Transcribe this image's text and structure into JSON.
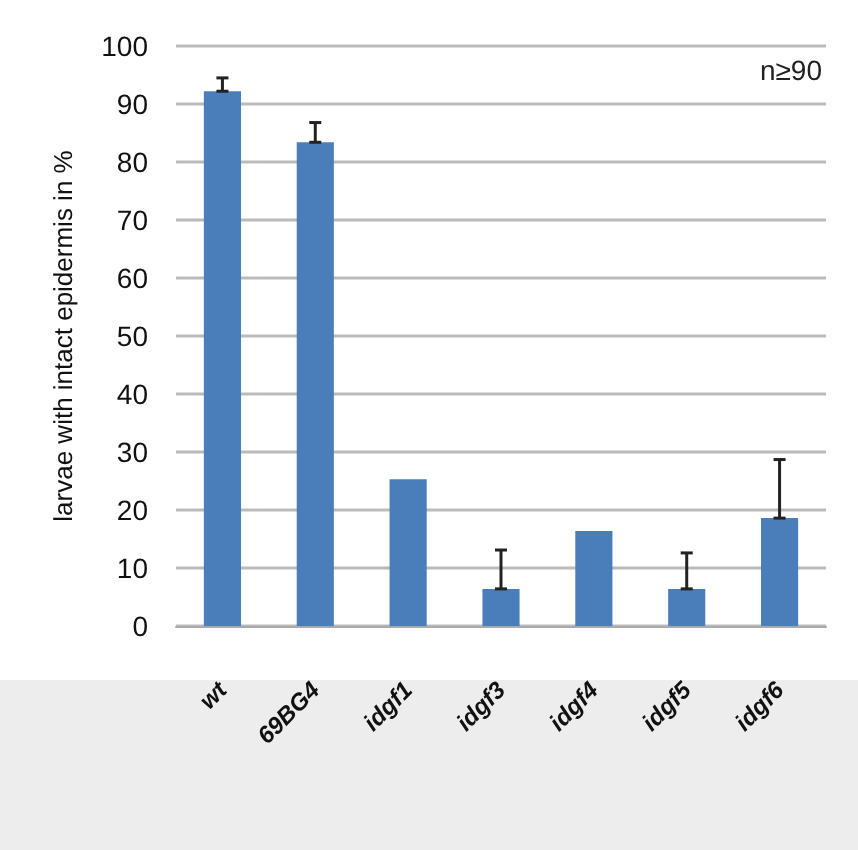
{
  "chart_data": {
    "type": "bar",
    "ylabel": "larvae with intact epidermis in %",
    "categories": [
      "wt",
      "69BG4",
      "idgf1",
      "idgf3",
      "idgf4",
      "idgf5",
      "idgf6"
    ],
    "values": [
      92.2,
      83.4,
      25.3,
      6.4,
      16.4,
      6.4,
      18.6
    ],
    "errors": [
      [
        92.2,
        94.5
      ],
      [
        83.4,
        86.8
      ],
      null,
      [
        6.4,
        13.1
      ],
      null,
      [
        6.4,
        12.6
      ],
      [
        18.6,
        28.7
      ]
    ],
    "color": "#4a7ebb",
    "ylim": [
      0,
      100
    ],
    "yticks": [
      0,
      10,
      20,
      30,
      40,
      50,
      60,
      70,
      80,
      90,
      100
    ],
    "grid": "y",
    "annotations": [
      "n≥90"
    ]
  }
}
